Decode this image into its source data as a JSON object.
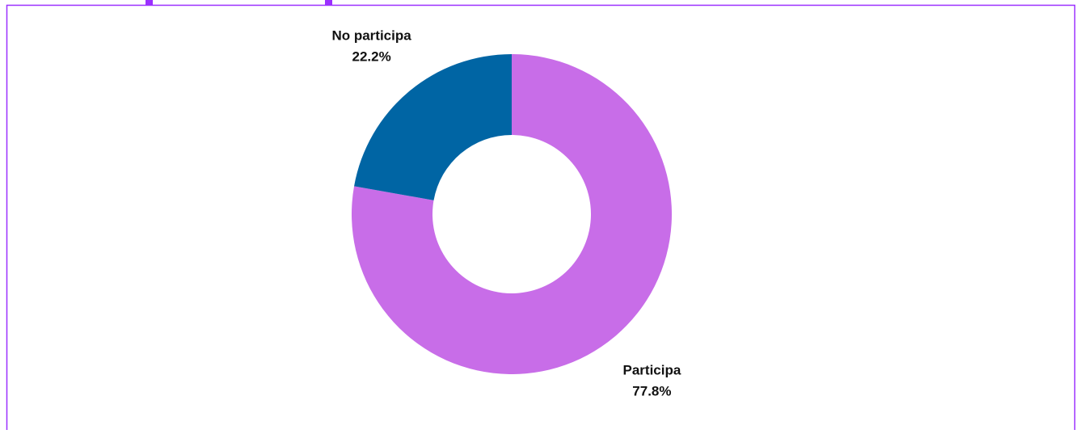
{
  "chart_data": {
    "type": "donut",
    "categories": [
      "Participa",
      "No participa"
    ],
    "values": [
      77.8,
      22.2
    ],
    "value_labels": [
      "77.8%",
      "22.2%"
    ],
    "colors": [
      "#c86de8",
      "#0065a4"
    ]
  }
}
